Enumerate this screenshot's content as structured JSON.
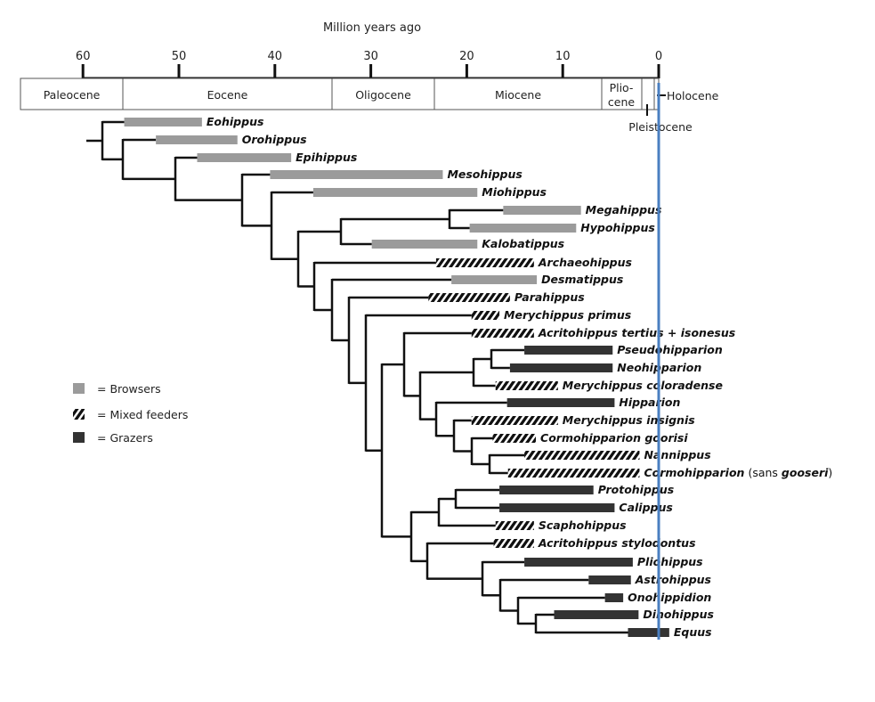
{
  "axis": {
    "title": "Million years ago",
    "ticks": [
      60,
      50,
      40,
      30,
      20,
      10,
      0
    ]
  },
  "epochs": [
    {
      "name": "Paleocene",
      "start": 66,
      "end": 56
    },
    {
      "name": "Eocene",
      "start": 56,
      "end": 33.9
    },
    {
      "name": "Oligocene",
      "start": 33.9,
      "end": 23
    },
    {
      "name": "Miocene",
      "start": 23,
      "end": 5.3
    },
    {
      "name": "Plio-",
      "name2": "cene",
      "start": 5.3,
      "end": 1.8
    },
    {
      "name": "Pleistocene",
      "start": 1.8,
      "end": 0.5
    },
    {
      "name": "Holocene",
      "start": 0.5,
      "end": 0
    }
  ],
  "legend": [
    {
      "type": "browser",
      "label": "= Browsers"
    },
    {
      "type": "mixed",
      "label": "= Mixed feeders"
    },
    {
      "type": "grazer",
      "label": "= Grazers"
    }
  ],
  "colors": {
    "browser": "#9b9b9b",
    "grazer": "#333333",
    "mixed": "#111111",
    "present_line": "#4a7fc1",
    "tree": "#111111"
  },
  "taxa": [
    {
      "name": "Eohippus",
      "type": "browser",
      "from": 55.7,
      "to": 47.6
    },
    {
      "name": "Orohippus",
      "type": "browser",
      "from": 52.4,
      "to": 43.9
    },
    {
      "name": "Epihippus",
      "type": "browser",
      "from": 48.1,
      "to": 38.3
    },
    {
      "name": "Mesohippus",
      "type": "browser",
      "from": 40.5,
      "to": 22.5
    },
    {
      "name": "Miohippus",
      "type": "browser",
      "from": 36,
      "to": 18.9
    },
    {
      "name": "Megahippus",
      "type": "browser",
      "from": 16.2,
      "to": 8.1
    },
    {
      "name": "Hypohippus",
      "type": "browser",
      "from": 19.7,
      "to": 8.6
    },
    {
      "name": "Kalobatippus",
      "type": "browser",
      "from": 29.9,
      "to": 18.9
    },
    {
      "name": "Archaeohippus",
      "type": "mixed",
      "from": 23.2,
      "to": 13
    },
    {
      "name": "Desmatippus",
      "type": "browser",
      "from": 21.6,
      "to": 12.7
    },
    {
      "name": "Parahippus",
      "type": "mixed",
      "from": 24,
      "to": 15.5
    },
    {
      "name": "Merychippus primus",
      "type": "mixed",
      "from": 19.5,
      "to": 16.6
    },
    {
      "name": "Acritohippus tertius + isonesus",
      "type": "mixed",
      "from": 19.5,
      "to": 13
    },
    {
      "name": "Pseudohipparion",
      "type": "grazer",
      "from": 14,
      "to": 4.8
    },
    {
      "name": "Neohipparion",
      "type": "grazer",
      "from": 15.5,
      "to": 4.8
    },
    {
      "name": "Merychippus coloradense",
      "type": "mixed",
      "from": 17,
      "to": 10.5
    },
    {
      "name": "Hipparion",
      "type": "grazer",
      "from": 15.8,
      "to": 4.6
    },
    {
      "name": "Merychippus insignis",
      "type": "mixed",
      "from": 19.5,
      "to": 10.5
    },
    {
      "name": "Cormohipparion goorisi",
      "type": "mixed",
      "from": 17.3,
      "to": 12.8
    },
    {
      "name": "Nannippus",
      "type": "mixed",
      "from": 14,
      "to": 2
    },
    {
      "name": "Cormohipparion",
      "suffix": [
        "(sans ",
        "gooseri",
        ")"
      ],
      "type": "mixed",
      "from": 15.7,
      "to": 2
    },
    {
      "name": "Protohippus",
      "type": "grazer",
      "from": 16.6,
      "to": 6.8
    },
    {
      "name": "Calippus",
      "type": "grazer",
      "from": 16.6,
      "to": 4.6
    },
    {
      "name": "Scaphohippus",
      "type": "mixed",
      "from": 17,
      "to": 13
    },
    {
      "name": "Acritohippus stylodontus",
      "type": "mixed",
      "from": 17.2,
      "to": 13
    },
    {
      "name": "Pliohippus",
      "type": "grazer",
      "from": 14,
      "to": 2.7
    },
    {
      "name": "Astrohippus",
      "type": "grazer",
      "from": 7.3,
      "to": 2.9
    },
    {
      "name": "Onohippidion",
      "type": "grazer",
      "from": 5.6,
      "to": 3.7
    },
    {
      "name": "Dinohippus",
      "type": "grazer",
      "from": 10.9,
      "to": 2.1
    },
    {
      "name": "Equus",
      "type": "grazer",
      "from": 3.2,
      "to": -1.1
    }
  ]
}
